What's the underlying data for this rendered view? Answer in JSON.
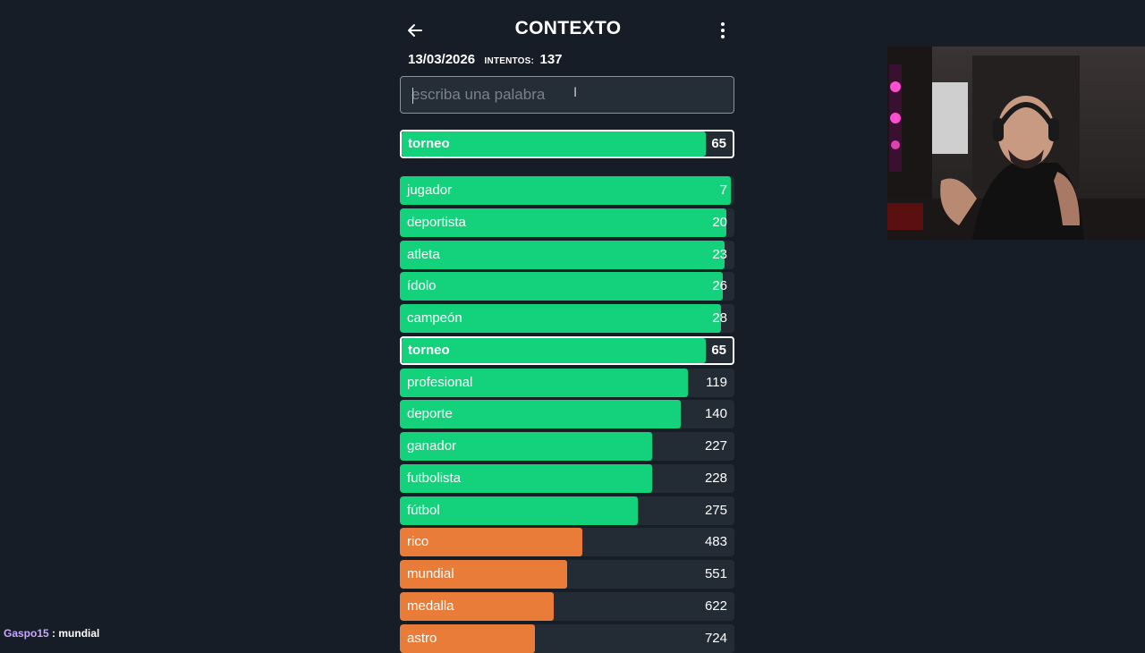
{
  "header": {
    "title": "CONTEXTO",
    "date": "13/03/2026",
    "intentos_label": "INTENTOS:",
    "intentos_value": "137"
  },
  "input": {
    "placeholder": "escriba una palabra",
    "value": ""
  },
  "colors": {
    "green": "#14d27b",
    "orange": "#e97c38",
    "track": "#232b35"
  },
  "last_guess": {
    "word": "torneo",
    "rank": "65",
    "level": 0.92
  },
  "guesses": [
    {
      "word": "jugador",
      "rank": "7",
      "color": "green",
      "level": 0.99
    },
    {
      "word": "deportista",
      "rank": "20",
      "color": "green",
      "level": 0.975
    },
    {
      "word": "atleta",
      "rank": "23",
      "color": "green",
      "level": 0.97
    },
    {
      "word": "ídolo",
      "rank": "26",
      "color": "green",
      "level": 0.965
    },
    {
      "word": "campeón",
      "rank": "28",
      "color": "green",
      "level": 0.96
    },
    {
      "word": "torneo",
      "rank": "65",
      "color": "green",
      "level": 0.92,
      "highlight": true
    },
    {
      "word": "profesional",
      "rank": "119",
      "color": "green",
      "level": 0.86
    },
    {
      "word": "deporte",
      "rank": "140",
      "color": "green",
      "level": 0.84
    },
    {
      "word": "ganador",
      "rank": "227",
      "color": "green",
      "level": 0.755
    },
    {
      "word": "futbolista",
      "rank": "228",
      "color": "green",
      "level": 0.755
    },
    {
      "word": "fútbol",
      "rank": "275",
      "color": "green",
      "level": 0.71
    },
    {
      "word": "rico",
      "rank": "483",
      "color": "orange",
      "level": 0.545
    },
    {
      "word": "mundial",
      "rank": "551",
      "color": "orange",
      "level": 0.5
    },
    {
      "word": "medalla",
      "rank": "622",
      "color": "orange",
      "level": 0.46
    },
    {
      "word": "astro",
      "rank": "724",
      "color": "orange",
      "level": 0.405
    }
  ],
  "chat": {
    "user": "Gaspo15",
    "separator": ":",
    "message": "mundial"
  }
}
